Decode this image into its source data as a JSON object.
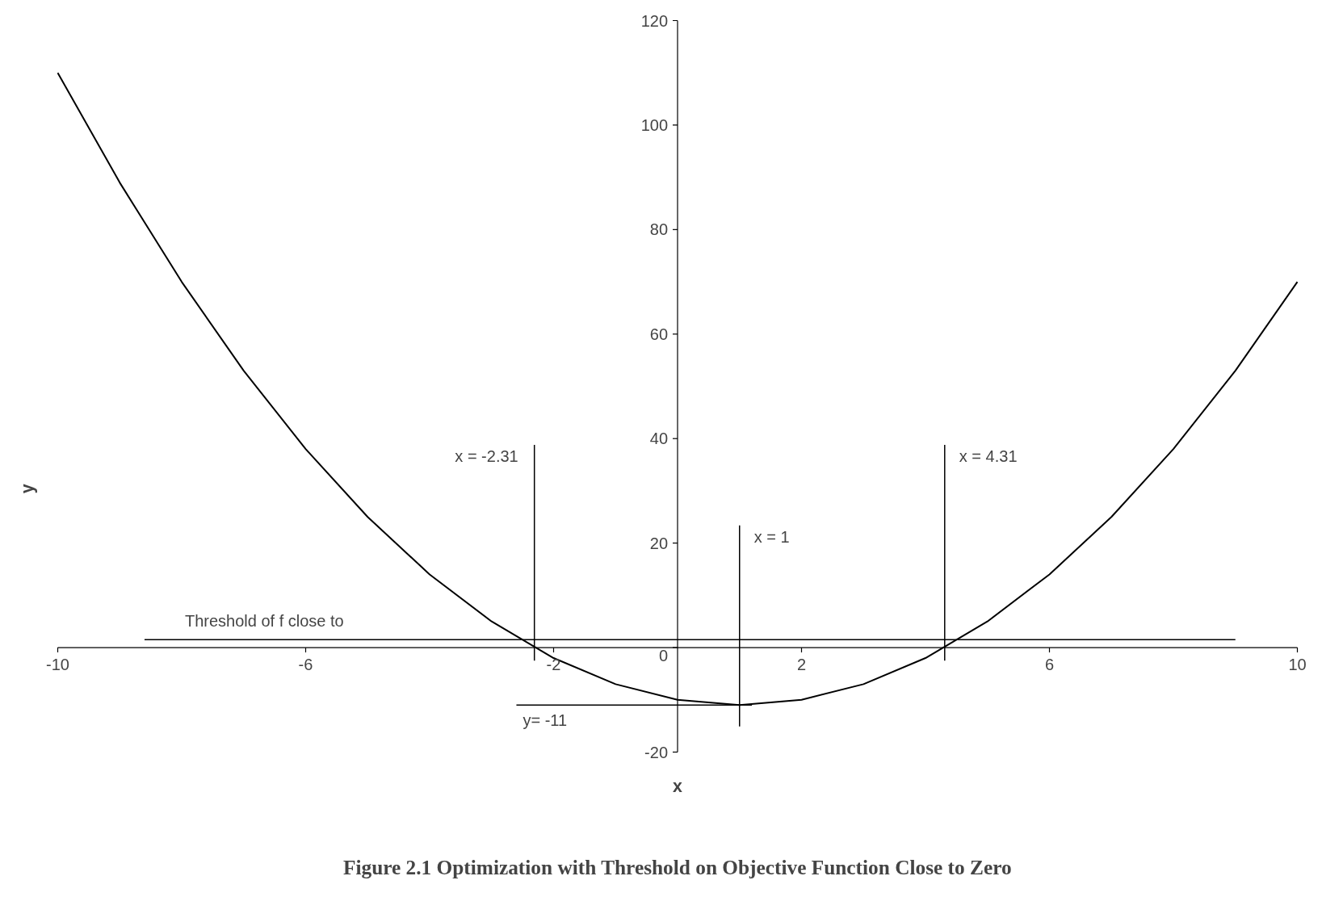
{
  "chart_data": {
    "type": "line",
    "title": "Figure 2.1 Optimization with Threshold on Objective Function Close to Zero",
    "xlabel": "x",
    "ylabel": "y",
    "x": [
      -10,
      -9,
      -8,
      -7,
      -6,
      -5,
      -4,
      -3,
      -2,
      -1,
      0,
      1,
      2,
      3,
      4,
      5,
      6,
      7,
      8,
      9,
      10
    ],
    "series": [
      {
        "color": "#000000",
        "values": [
          110,
          89,
          70,
          53,
          38,
          25,
          14,
          5,
          -2,
          -7,
          -10,
          -11,
          -10,
          -7,
          -2,
          5,
          14,
          25,
          38,
          53,
          70
        ]
      }
    ],
    "xlim": [
      -10,
      10
    ],
    "ylim": [
      -20,
      120
    ],
    "xticks": [
      -10,
      -6,
      -2,
      2,
      6,
      10
    ],
    "yticks": [
      -20,
      0,
      20,
      40,
      60,
      80,
      100,
      120
    ],
    "ref_lines": [
      {
        "axis": "x",
        "value": -2.31,
        "label": "x = -2.31"
      },
      {
        "axis": "x",
        "value": 1,
        "label": "x = 1"
      },
      {
        "axis": "x",
        "value": 4.31,
        "label": "x = 4.31"
      },
      {
        "axis": "y",
        "value": 1.5,
        "label": "Threshold of f close to"
      },
      {
        "axis": "y",
        "value": -11,
        "label": "y= -11"
      }
    ],
    "grid": false,
    "marker": "none",
    "line_style": "solid"
  }
}
